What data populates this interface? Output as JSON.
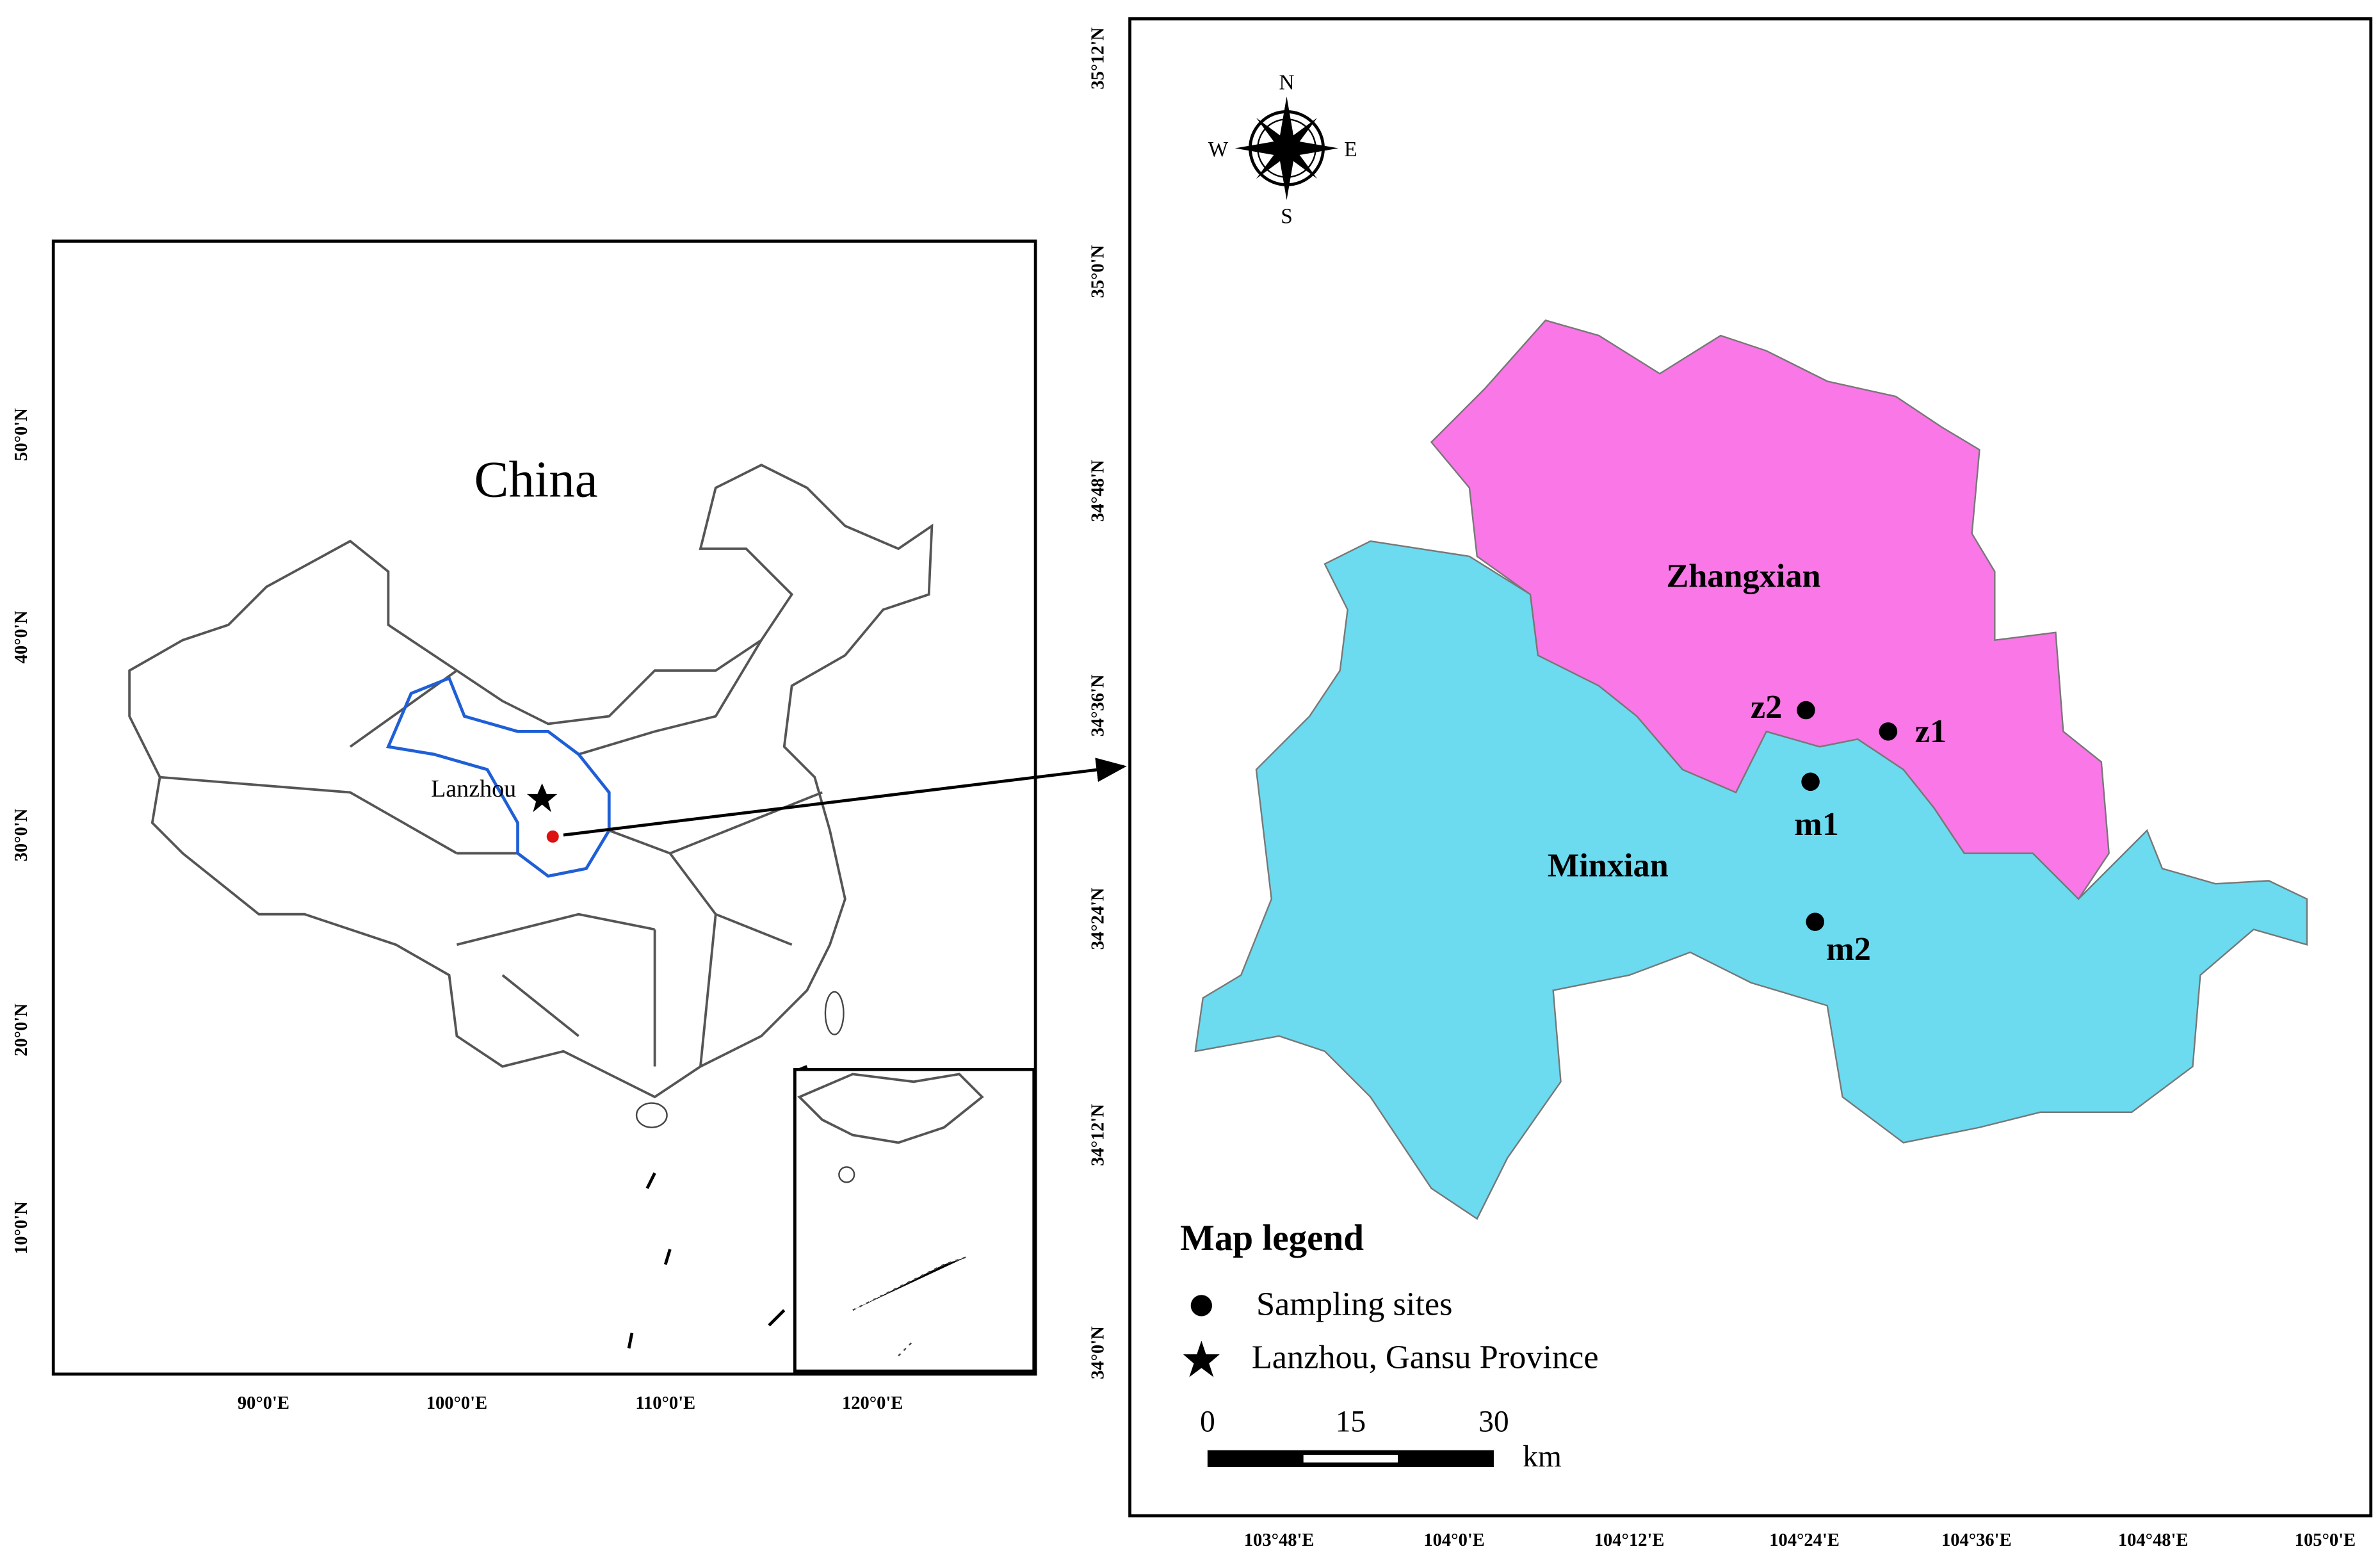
{
  "china_map": {
    "title": "China",
    "city_label": "Lanzhou",
    "lat_labels": [
      "50°0'N",
      "40°0'N",
      "30°0'N",
      "20°0'N",
      "10°0'N"
    ],
    "lon_labels": [
      "90°0'E",
      "100°0'E",
      "110°0'E",
      "120°0'E"
    ]
  },
  "study_map": {
    "lat_labels": [
      "35°12'N",
      "35°0'N",
      "34°48'N",
      "34°36'N",
      "34°24'N",
      "34°12'N",
      "34°0'N"
    ],
    "lon_labels": [
      "103°48'E",
      "104°0'E",
      "104°12'E",
      "104°24'E",
      "104°36'E",
      "104°48'E",
      "105°0'E"
    ],
    "compass": [
      "N",
      "S",
      "W",
      "E"
    ],
    "regions": [
      "Zhangxian",
      "Minxian"
    ],
    "sites": [
      "z2",
      "z1",
      "m1",
      "m2"
    ],
    "legend": {
      "title": "Map legend",
      "items": [
        "Sampling sites",
        "Lanzhou, Gansu Province"
      ]
    },
    "scale": {
      "ticks": [
        0,
        15,
        30
      ],
      "unit": "km"
    }
  }
}
